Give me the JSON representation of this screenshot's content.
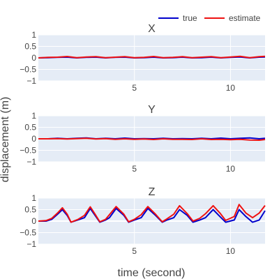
{
  "colors": {
    "plot_bg": "#e5ecf6",
    "grid": "#ffffff",
    "true": "#0000cc",
    "estimate": "#ee1111",
    "text": "#444444"
  },
  "chart_data": {
    "type": "line",
    "xlabel": "time (second)",
    "ylabel": "displacement (m)",
    "legend_position": "top-right",
    "legend": [
      "true",
      "estimate"
    ],
    "xlim": [
      0,
      11.8
    ],
    "xticks": [
      5,
      10
    ],
    "grid": true,
    "panels": [
      {
        "title": "X",
        "ylim": [
          -1,
          1
        ],
        "yticks": [
          -1,
          -0.5,
          0,
          0.5,
          1
        ],
        "yticklabels": [
          "−1",
          "−0.5",
          "0",
          "0.5",
          "1"
        ],
        "xticklabels": [
          "5",
          "10"
        ],
        "series": [
          {
            "name": "true",
            "x": [
              0,
              0.5,
              1,
              1.5,
              2,
              2.5,
              3,
              3.5,
              4,
              4.5,
              5,
              5.5,
              6,
              6.5,
              7,
              7.5,
              8,
              8.5,
              9,
              9.5,
              10,
              10.5,
              11,
              11.5,
              11.8
            ],
            "y": [
              0,
              0.01,
              0.02,
              0.03,
              0.0,
              0.02,
              0.03,
              0.0,
              0.02,
              0.03,
              0.0,
              0.01,
              0.03,
              0.0,
              0.01,
              0.03,
              0.0,
              0.01,
              0.03,
              0.0,
              0.02,
              0.04,
              0.0,
              0.03,
              0.04
            ]
          },
          {
            "name": "estimate",
            "x": [
              0,
              0.5,
              1,
              1.5,
              2,
              2.5,
              3,
              3.5,
              4,
              4.5,
              5,
              5.5,
              6,
              6.5,
              7,
              7.5,
              8,
              8.5,
              9,
              9.5,
              10,
              10.5,
              11,
              11.5,
              11.8
            ],
            "y": [
              0,
              0.02,
              0.03,
              0.06,
              0.01,
              0.04,
              0.05,
              0.01,
              0.03,
              0.05,
              0.01,
              0.02,
              0.06,
              0.01,
              0.02,
              0.05,
              0.01,
              0.03,
              0.05,
              0.01,
              0.04,
              0.07,
              0.01,
              0.05,
              0.07
            ]
          }
        ]
      },
      {
        "title": "Y",
        "ylim": [
          -1,
          1
        ],
        "yticks": [
          -1,
          -0.5,
          0,
          0.5,
          1
        ],
        "yticklabels": [
          "−1",
          "−0.5",
          "0",
          "0.5",
          "1"
        ],
        "xticklabels": [
          "5",
          "10"
        ],
        "series": [
          {
            "name": "true",
            "x": [
              0,
              0.5,
              1,
              1.5,
              2,
              2.5,
              3,
              3.5,
              4,
              4.5,
              5,
              5.5,
              6,
              6.5,
              7,
              7.5,
              8,
              8.5,
              9,
              9.5,
              10,
              10.5,
              11,
              11.5,
              11.8
            ],
            "y": [
              0,
              0.0,
              0.02,
              0.0,
              0.02,
              0.04,
              0.0,
              0.02,
              0.0,
              0.03,
              0.0,
              0.01,
              0.0,
              0.02,
              0.0,
              0.01,
              0.0,
              0.02,
              0.0,
              0.03,
              0.0,
              0.02,
              0.04,
              0.0,
              0.02
            ]
          },
          {
            "name": "estimate",
            "x": [
              0,
              0.5,
              1,
              1.5,
              2,
              2.5,
              3,
              3.5,
              4,
              4.5,
              5,
              5.5,
              6,
              6.5,
              7,
              7.5,
              8,
              8.5,
              9,
              9.5,
              10,
              10.5,
              11,
              11.5,
              11.8
            ],
            "y": [
              0,
              0.0,
              0.01,
              -0.01,
              0.01,
              0.02,
              -0.01,
              0.01,
              -0.02,
              0.0,
              -0.02,
              -0.01,
              -0.03,
              0.0,
              -0.02,
              -0.02,
              -0.03,
              0.0,
              -0.03,
              -0.02,
              -0.04,
              -0.02,
              -0.05,
              -0.06,
              -0.03
            ]
          }
        ]
      },
      {
        "title": "Z",
        "ylim": [
          -1,
          1
        ],
        "yticks": [
          -1,
          -0.5,
          0,
          0.5,
          1
        ],
        "yticklabels": [
          "−1",
          "−0.5",
          "0",
          "0.5",
          "1"
        ],
        "xticklabels": [
          "5",
          "10"
        ],
        "series": [
          {
            "name": "true",
            "x": [
              0,
              0.4,
              0.7,
              1.0,
              1.25,
              1.5,
              1.7,
              2.05,
              2.4,
              2.7,
              2.95,
              3.2,
              3.5,
              3.7,
              4.05,
              4.45,
              4.7,
              5.0,
              5.35,
              5.7,
              6.1,
              6.45,
              6.7,
              7.05,
              7.35,
              7.75,
              8.05,
              8.4,
              8.7,
              9.1,
              9.45,
              9.75,
              10.2,
              10.45,
              10.8,
              11.15,
              11.5,
              11.8
            ],
            "y": [
              0,
              0,
              0.08,
              0.3,
              0.5,
              0.25,
              -0.05,
              0.05,
              0.15,
              0.55,
              0.25,
              -0.05,
              0.05,
              0.15,
              0.55,
              0.25,
              -0.05,
              0.05,
              0.15,
              0.55,
              0.25,
              -0.05,
              0.05,
              0.15,
              0.5,
              0.25,
              -0.05,
              0.05,
              0.15,
              0.5,
              0.2,
              -0.05,
              0.05,
              0.5,
              0.2,
              -0.05,
              0.05,
              0.45
            ]
          },
          {
            "name": "estimate",
            "x": [
              0,
              0.4,
              0.7,
              1.0,
              1.25,
              1.5,
              1.7,
              2.05,
              2.4,
              2.7,
              2.95,
              3.2,
              3.5,
              3.7,
              4.05,
              4.45,
              4.7,
              5.0,
              5.35,
              5.7,
              6.1,
              6.45,
              6.7,
              7.05,
              7.35,
              7.75,
              8.05,
              8.4,
              8.7,
              9.1,
              9.45,
              9.75,
              10.2,
              10.45,
              10.8,
              11.15,
              11.5,
              11.8
            ],
            "y": [
              0,
              0.02,
              0.12,
              0.35,
              0.58,
              0.3,
              -0.05,
              0.07,
              0.25,
              0.62,
              0.3,
              -0.03,
              0.08,
              0.28,
              0.63,
              0.3,
              -0.03,
              0.08,
              0.28,
              0.63,
              0.3,
              -0.03,
              0.1,
              0.3,
              0.67,
              0.32,
              0.0,
              0.12,
              0.32,
              0.67,
              0.35,
              0.03,
              0.2,
              0.72,
              0.35,
              0.15,
              0.35,
              0.68
            ]
          }
        ]
      }
    ]
  }
}
